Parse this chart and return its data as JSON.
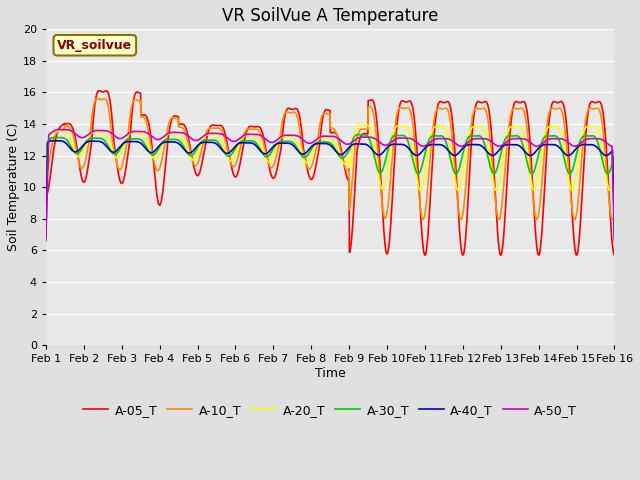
{
  "title": "VR SoilVue A Temperature",
  "xlabel": "Time",
  "ylabel": "Soil Temperature (C)",
  "xlim": [
    0,
    15
  ],
  "ylim": [
    0,
    20
  ],
  "yticks": [
    0,
    2,
    4,
    6,
    8,
    10,
    12,
    14,
    16,
    18,
    20
  ],
  "xtick_labels": [
    "Feb 1",
    "Feb 2",
    "Feb 3",
    "Feb 4",
    "Feb 5",
    "Feb 6",
    "Feb 7",
    "Feb 8",
    "Feb 9",
    "Feb 10",
    "Feb 11",
    "Feb 12",
    "Feb 13",
    "Feb 14",
    "Feb 15",
    "Feb 16"
  ],
  "annotation_text": "VR_soilvue",
  "annotation_color": "#8B0000",
  "annotation_bg": "#FFFFCC",
  "annotation_edge": "#8B7000",
  "bg_color": "#E8E8E8",
  "fig_color": "#E0E0E0",
  "series_colors": [
    "#FF0000",
    "#FF8C00",
    "#FFFF00",
    "#00CC00",
    "#0000CC",
    "#CC00CC"
  ],
  "series_labels": [
    "A-05_T",
    "A-10_T",
    "A-20_T",
    "A-30_T",
    "A-40_T",
    "A-50_T"
  ],
  "title_fontsize": 12,
  "axis_label_fontsize": 9,
  "tick_fontsize": 8,
  "legend_fontsize": 9,
  "line_width": 1.2,
  "grid_color": "#FFFFFF",
  "grid_linewidth": 1.0
}
